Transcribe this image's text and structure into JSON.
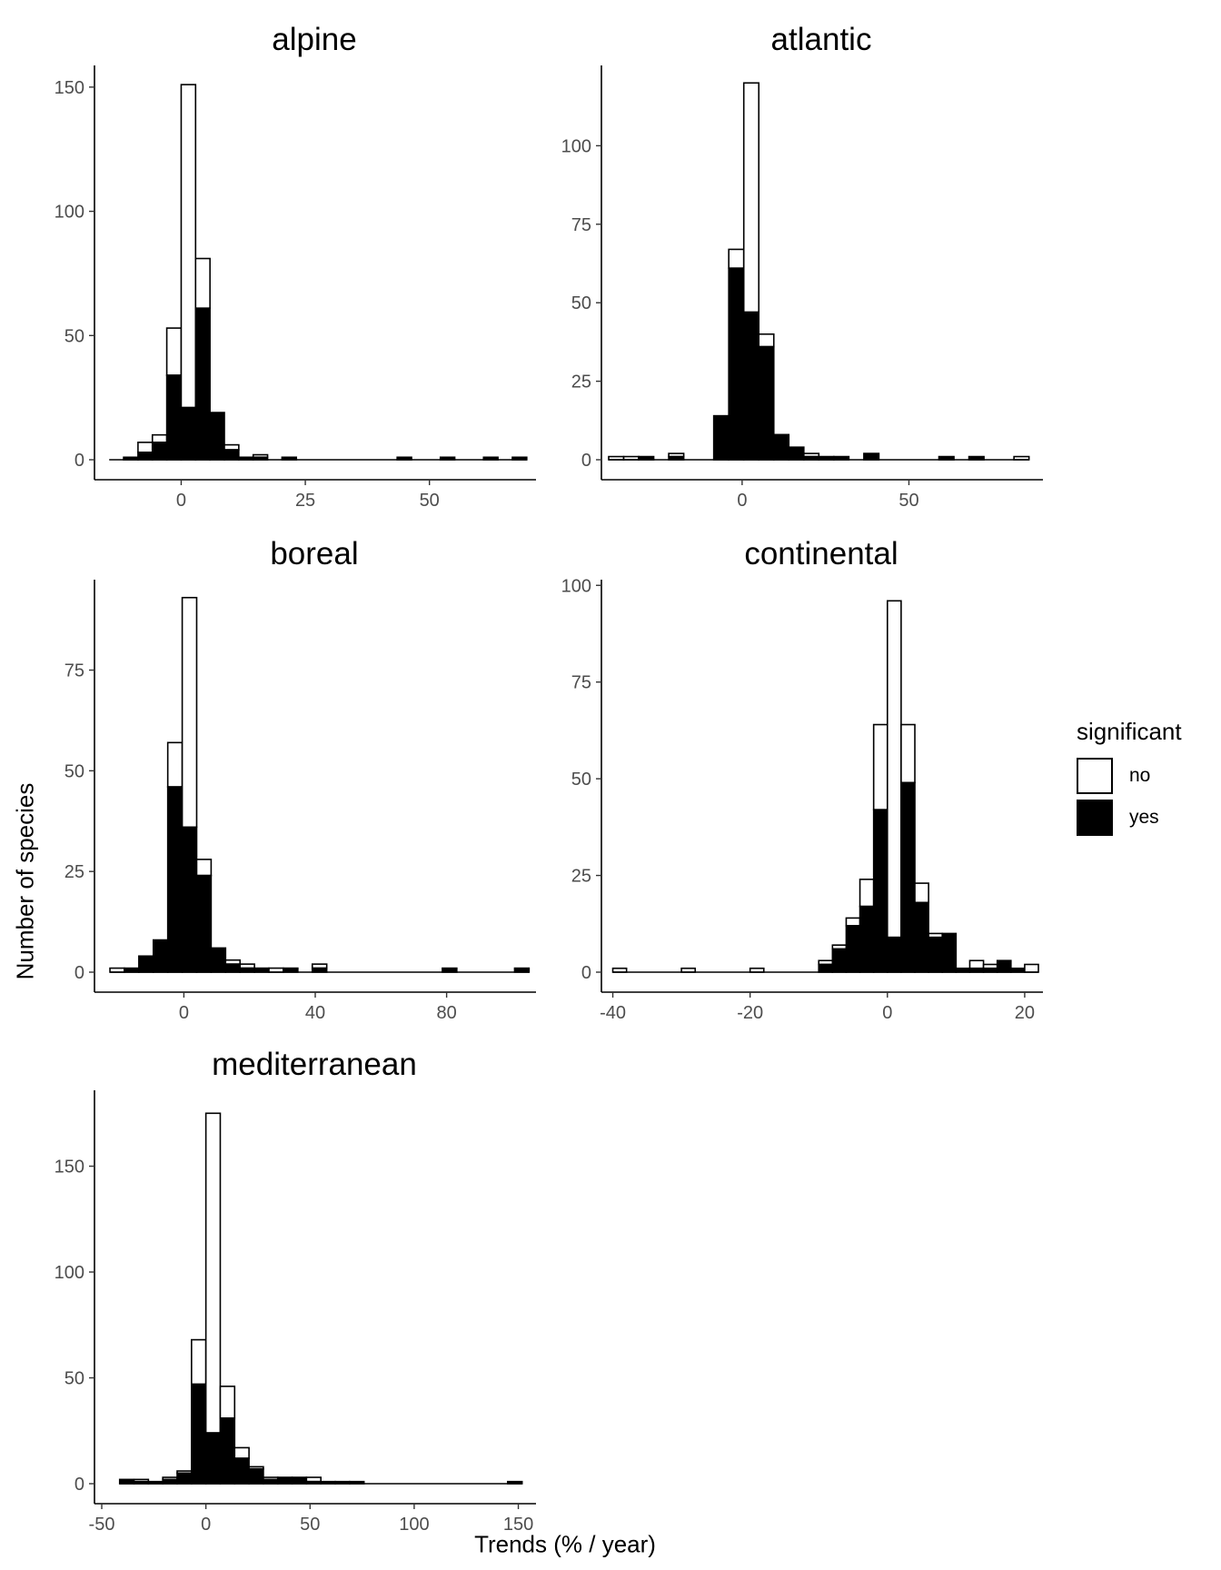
{
  "figure": {
    "xlabel": "Trends (% / year)",
    "ylabel": "Number of species"
  },
  "legend": {
    "title": "significant",
    "placement": "right",
    "items": [
      {
        "label": "no",
        "color": "#ffffff"
      },
      {
        "label": "yes",
        "color": "#000000"
      }
    ]
  },
  "colors": {
    "no": "#ffffff",
    "yes": "#000000",
    "outline": "#000000"
  },
  "chart_data": [
    {
      "type": "bar",
      "title": "alpine",
      "xlim": [
        -16,
        70
      ],
      "ylim": [
        0,
        158
      ],
      "xticks": [
        0,
        25,
        50
      ],
      "yticks": [
        0,
        50,
        100,
        150
      ],
      "bin_edges": [
        -14.5,
        -11.6,
        -8.7,
        -5.8,
        -2.9,
        0,
        2.9,
        5.8,
        8.7,
        11.6,
        14.5,
        17.4,
        20.3,
        23.2,
        26.1,
        29,
        31.9,
        34.8,
        37.7,
        40.6,
        43.5,
        46.4,
        49.3,
        52.2,
        55.1,
        58,
        60.9,
        63.8,
        66.7,
        69.6
      ],
      "yes": [
        0,
        1,
        3,
        7,
        34,
        21,
        61,
        19,
        4,
        1,
        1,
        0,
        1,
        0,
        0,
        0,
        0,
        0,
        0,
        0,
        1,
        0,
        0,
        1,
        0,
        0,
        1,
        0,
        1
      ],
      "no": [
        0,
        0,
        4,
        3,
        19,
        130,
        20,
        0,
        2,
        0,
        1,
        0,
        0,
        0,
        0,
        0,
        0,
        0,
        0,
        0,
        0,
        0,
        0,
        0,
        0,
        0,
        0,
        0,
        0
      ],
      "show_xlabels": true
    },
    {
      "type": "bar",
      "title": "atlantic",
      "xlim": [
        -40,
        88
      ],
      "ylim": [
        0,
        125
      ],
      "xticks": [
        0,
        50
      ],
      "yticks": [
        0,
        25,
        50,
        75,
        100
      ],
      "bin_edges": [
        -40,
        -35.5,
        -31,
        -26.5,
        -22,
        -17.5,
        -13,
        -8.5,
        -4,
        0.5,
        5,
        9.5,
        14,
        18.5,
        23,
        27.5,
        32,
        36.5,
        41,
        45.5,
        50,
        54.5,
        59,
        63.5,
        68,
        72.5,
        77,
        81.5,
        86
      ],
      "yes": [
        0,
        0,
        1,
        0,
        1,
        0,
        0,
        14,
        61,
        47,
        36,
        8,
        4,
        1,
        1,
        1,
        0,
        2,
        0,
        0,
        0,
        0,
        1,
        0,
        1,
        0,
        0,
        0
      ],
      "no": [
        1,
        1,
        0,
        0,
        1,
        0,
        0,
        0,
        6,
        73,
        4,
        0,
        0,
        1,
        0,
        0,
        0,
        0,
        0,
        0,
        0,
        0,
        0,
        0,
        0,
        0,
        0,
        1
      ],
      "show_xlabels": true
    },
    {
      "type": "bar",
      "title": "boreal",
      "xlim": [
        -25,
        105
      ],
      "ylim": [
        0,
        97
      ],
      "xticks": [
        0,
        40,
        80
      ],
      "yticks": [
        0,
        25,
        50,
        75
      ],
      "bin_edges": [
        -22.5,
        -18.1,
        -13.7,
        -9.3,
        -4.9,
        -0.5,
        3.9,
        8.3,
        12.7,
        17.1,
        21.5,
        25.9,
        30.3,
        34.7,
        39.1,
        43.5,
        47.9,
        52.3,
        56.7,
        61.1,
        65.5,
        69.9,
        74.3,
        78.7,
        83.1,
        87.5,
        91.9,
        96.3,
        100.7,
        105.1
      ],
      "yes": [
        0,
        1,
        4,
        8,
        46,
        36,
        24,
        6,
        2,
        1,
        1,
        0,
        1,
        0,
        1,
        0,
        0,
        0,
        0,
        0,
        0,
        0,
        0,
        1,
        0,
        0,
        0,
        0,
        1
      ],
      "no": [
        1,
        0,
        0,
        0,
        11,
        57,
        4,
        0,
        1,
        1,
        0,
        1,
        0,
        0,
        1,
        0,
        0,
        0,
        0,
        0,
        0,
        0,
        0,
        0,
        0,
        0,
        0,
        0,
        0
      ],
      "show_xlabels": true
    },
    {
      "type": "bar",
      "title": "continental",
      "xlim": [
        -40.6,
        21.6
      ],
      "ylim": [
        0,
        101
      ],
      "xticks": [
        -40,
        -20,
        0,
        20
      ],
      "yticks": [
        0,
        25,
        50,
        75,
        100
      ],
      "bin_edges": [
        -40,
        -38,
        -36,
        -34,
        -32,
        -30,
        -28,
        -26,
        -24,
        -22,
        -20,
        -18,
        -16,
        -14,
        -12,
        -10,
        -8,
        -6,
        -4,
        -2,
        0,
        2,
        4,
        6,
        8,
        10,
        12,
        14,
        16,
        18,
        20,
        22
      ],
      "yes": [
        0,
        0,
        0,
        0,
        0,
        0,
        0,
        0,
        0,
        0,
        0,
        0,
        0,
        0,
        0,
        2,
        6,
        12,
        17,
        42,
        9,
        49,
        18,
        9,
        10,
        1,
        1,
        1,
        3,
        1,
        0
      ],
      "no": [
        1,
        0,
        0,
        0,
        0,
        1,
        0,
        0,
        0,
        0,
        1,
        0,
        0,
        0,
        0,
        1,
        1,
        2,
        7,
        22,
        87,
        15,
        5,
        1,
        0,
        0,
        2,
        1,
        0,
        0,
        2
      ],
      "show_xlabels": true
    },
    {
      "type": "bar",
      "title": "mediterranean",
      "xlim": [
        -50,
        155
      ],
      "ylim": [
        0,
        185
      ],
      "xticks": [
        -50,
        0,
        50,
        100,
        150
      ],
      "yticks": [
        0,
        50,
        100,
        150
      ],
      "bin_edges": [
        -41.4,
        -34.5,
        -27.6,
        -20.7,
        -13.8,
        -6.9,
        0,
        6.9,
        13.8,
        20.7,
        27.6,
        34.5,
        41.4,
        48.3,
        55.2,
        62.1,
        69,
        75.9,
        82.8,
        89.7,
        96.6,
        103.5,
        110.4,
        117.3,
        124.2,
        131.1,
        138,
        144.9,
        151.8
      ],
      "yes": [
        2,
        1,
        1,
        2,
        5,
        47,
        24,
        31,
        12,
        7,
        2,
        3,
        3,
        1,
        1,
        1,
        1,
        0,
        0,
        0,
        0,
        0,
        0,
        0,
        0,
        0,
        0,
        1
      ],
      "no": [
        0,
        1,
        0,
        1,
        1,
        21,
        151,
        15,
        5,
        1,
        1,
        0,
        0,
        2,
        0,
        0,
        0,
        0,
        0,
        0,
        0,
        0,
        0,
        0,
        0,
        0,
        0,
        0
      ],
      "show_xlabels": true
    }
  ]
}
